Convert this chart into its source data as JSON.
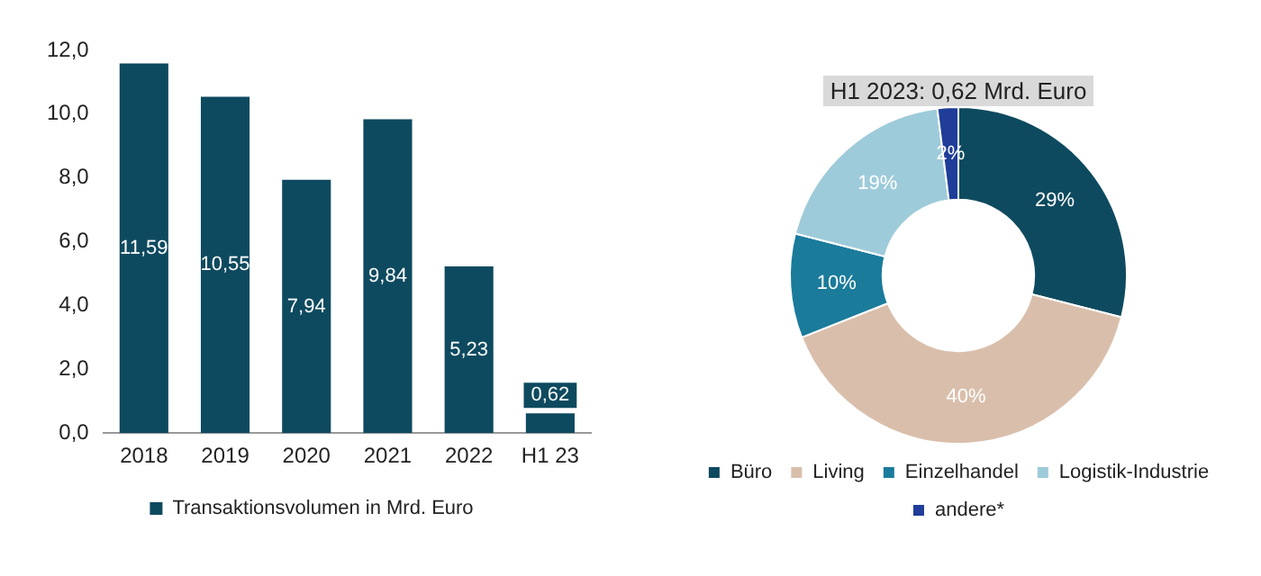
{
  "chart_data": [
    {
      "type": "bar",
      "categories": [
        "2018",
        "2019",
        "2020",
        "2021",
        "2022",
        "H1 23"
      ],
      "series": [
        {
          "name": "Transaktionsvolumen in Mrd. Euro",
          "color": "#0e4a5f",
          "values": [
            11.59,
            10.55,
            7.94,
            9.84,
            5.23,
            0.62
          ]
        }
      ],
      "value_labels": [
        "11,59",
        "10,55",
        "7,94",
        "9,84",
        "5,23",
        "0,62"
      ],
      "ylim": [
        0,
        12
      ],
      "yticks": [
        {
          "value": 0,
          "label": "0,0"
        },
        {
          "value": 2,
          "label": "2,0"
        },
        {
          "value": 4,
          "label": "4,0"
        },
        {
          "value": 6,
          "label": "6,0"
        },
        {
          "value": 8,
          "label": "8,0"
        },
        {
          "value": 10,
          "label": "10,0"
        },
        {
          "value": 12,
          "label": "12,0"
        }
      ],
      "grid": false,
      "legend": "bottom"
    },
    {
      "type": "donut",
      "title": "H1 2023: 0,62 Mrd. Euro",
      "categories": [
        "Büro",
        "Living",
        "Einzelhandel",
        "Logistik-Industrie",
        "andere*"
      ],
      "values": [
        29,
        40,
        10,
        19,
        2
      ],
      "colors": [
        "#0e4a5f",
        "#d9bfab",
        "#1a7b9b",
        "#9ecbda",
        "#1f3d99"
      ],
      "value_labels": [
        "29%",
        "40%",
        "10%",
        "19%",
        "2%"
      ],
      "legend": "bottom"
    }
  ]
}
